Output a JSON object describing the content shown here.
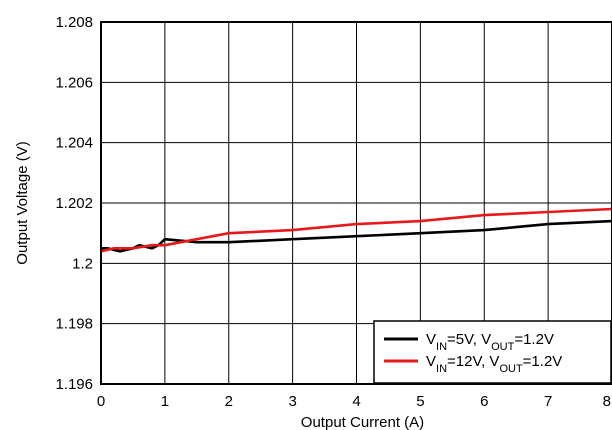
{
  "chart_data": {
    "type": "line",
    "xlabel": "Output Current (A)",
    "ylabel": "Output Voltage (V)",
    "xlim": [
      0,
      8
    ],
    "ylim": [
      1.196,
      1.208
    ],
    "x_ticks": [
      0,
      1,
      2,
      3,
      4,
      5,
      6,
      7,
      8
    ],
    "x_tick_labels": [
      "0",
      "1",
      "2",
      "3",
      "4",
      "5",
      "6",
      "7",
      "8"
    ],
    "y_ticks": [
      1.196,
      1.198,
      1.2,
      1.202,
      1.204,
      1.206,
      1.208
    ],
    "y_tick_labels": [
      "1.196",
      "1.198",
      "1.2",
      "1.202",
      "1.204",
      "1.206",
      "1.208"
    ],
    "grid": true,
    "legend_position": "bottom-right",
    "series": [
      {
        "legend": {
          "p1": "V",
          "s1": "IN",
          "p2": "=5V, V",
          "s2": "OUT",
          "p3": "=1.2V"
        },
        "color": "#000000",
        "x": [
          0,
          0.1,
          0.3,
          0.5,
          0.6,
          0.8,
          0.9,
          1.0,
          1.5,
          2.0,
          3.0,
          4.0,
          5.0,
          6.0,
          6.5,
          7.0,
          8.0
        ],
        "y": [
          1.2005,
          1.2005,
          1.2004,
          1.2005,
          1.2006,
          1.2005,
          1.2006,
          1.2008,
          1.2007,
          1.2007,
          1.2008,
          1.2009,
          1.201,
          1.2011,
          1.2012,
          1.2013,
          1.2014
        ]
      },
      {
        "legend": {
          "p1": "V",
          "s1": "IN",
          "p2": "=12V, V",
          "s2": "OUT",
          "p3": "=1.2V"
        },
        "color": "#e8191d",
        "x": [
          0,
          0.2,
          0.5,
          0.8,
          1.0,
          1.5,
          2.0,
          3.0,
          4.0,
          5.0,
          6.0,
          7.0,
          8.0
        ],
        "y": [
          1.2004,
          1.2005,
          1.2005,
          1.2006,
          1.2006,
          1.2008,
          1.201,
          1.2011,
          1.2013,
          1.2014,
          1.2016,
          1.2017,
          1.2018
        ]
      }
    ]
  }
}
